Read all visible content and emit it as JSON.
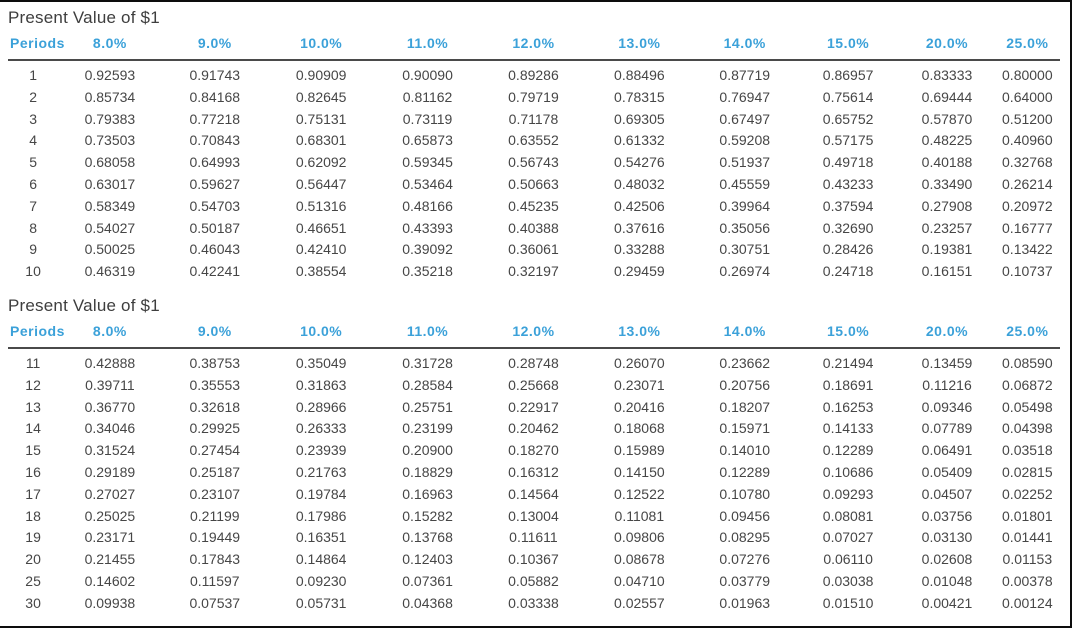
{
  "colors": {
    "header_text": "#3ba1d9",
    "body_text": "#464646",
    "title_text": "#3e3e3e",
    "rule": "#4a4a4a",
    "border": "#0d0d0d"
  },
  "chart_data": [
    {
      "type": "table",
      "title": "Present Value of $1",
      "columns": [
        "Periods",
        "8.0%",
        "9.0%",
        "10.0%",
        "11.0%",
        "12.0%",
        "13.0%",
        "14.0%",
        "15.0%",
        "20.0%",
        "25.0%"
      ],
      "rows": [
        [
          "1",
          "0.92593",
          "0.91743",
          "0.90909",
          "0.90090",
          "0.89286",
          "0.88496",
          "0.87719",
          "0.86957",
          "0.83333",
          "0.80000"
        ],
        [
          "2",
          "0.85734",
          "0.84168",
          "0.82645",
          "0.81162",
          "0.79719",
          "0.78315",
          "0.76947",
          "0.75614",
          "0.69444",
          "0.64000"
        ],
        [
          "3",
          "0.79383",
          "0.77218",
          "0.75131",
          "0.73119",
          "0.71178",
          "0.69305",
          "0.67497",
          "0.65752",
          "0.57870",
          "0.51200"
        ],
        [
          "4",
          "0.73503",
          "0.70843",
          "0.68301",
          "0.65873",
          "0.63552",
          "0.61332",
          "0.59208",
          "0.57175",
          "0.48225",
          "0.40960"
        ],
        [
          "5",
          "0.68058",
          "0.64993",
          "0.62092",
          "0.59345",
          "0.56743",
          "0.54276",
          "0.51937",
          "0.49718",
          "0.40188",
          "0.32768"
        ],
        [
          "6",
          "0.63017",
          "0.59627",
          "0.56447",
          "0.53464",
          "0.50663",
          "0.48032",
          "0.45559",
          "0.43233",
          "0.33490",
          "0.26214"
        ],
        [
          "7",
          "0.58349",
          "0.54703",
          "0.51316",
          "0.48166",
          "0.45235",
          "0.42506",
          "0.39964",
          "0.37594",
          "0.27908",
          "0.20972"
        ],
        [
          "8",
          "0.54027",
          "0.50187",
          "0.46651",
          "0.43393",
          "0.40388",
          "0.37616",
          "0.35056",
          "0.32690",
          "0.23257",
          "0.16777"
        ],
        [
          "9",
          "0.50025",
          "0.46043",
          "0.42410",
          "0.39092",
          "0.36061",
          "0.33288",
          "0.30751",
          "0.28426",
          "0.19381",
          "0.13422"
        ],
        [
          "10",
          "0.46319",
          "0.42241",
          "0.38554",
          "0.35218",
          "0.32197",
          "0.29459",
          "0.26974",
          "0.24718",
          "0.16151",
          "0.10737"
        ]
      ]
    },
    {
      "type": "table",
      "title": "Present Value of $1",
      "columns": [
        "Periods",
        "8.0%",
        "9.0%",
        "10.0%",
        "11.0%",
        "12.0%",
        "13.0%",
        "14.0%",
        "15.0%",
        "20.0%",
        "25.0%"
      ],
      "rows": [
        [
          "11",
          "0.42888",
          "0.38753",
          "0.35049",
          "0.31728",
          "0.28748",
          "0.26070",
          "0.23662",
          "0.21494",
          "0.13459",
          "0.08590"
        ],
        [
          "12",
          "0.39711",
          "0.35553",
          "0.31863",
          "0.28584",
          "0.25668",
          "0.23071",
          "0.20756",
          "0.18691",
          "0.11216",
          "0.06872"
        ],
        [
          "13",
          "0.36770",
          "0.32618",
          "0.28966",
          "0.25751",
          "0.22917",
          "0.20416",
          "0.18207",
          "0.16253",
          "0.09346",
          "0.05498"
        ],
        [
          "14",
          "0.34046",
          "0.29925",
          "0.26333",
          "0.23199",
          "0.20462",
          "0.18068",
          "0.15971",
          "0.14133",
          "0.07789",
          "0.04398"
        ],
        [
          "15",
          "0.31524",
          "0.27454",
          "0.23939",
          "0.20900",
          "0.18270",
          "0.15989",
          "0.14010",
          "0.12289",
          "0.06491",
          "0.03518"
        ],
        [
          "16",
          "0.29189",
          "0.25187",
          "0.21763",
          "0.18829",
          "0.16312",
          "0.14150",
          "0.12289",
          "0.10686",
          "0.05409",
          "0.02815"
        ],
        [
          "17",
          "0.27027",
          "0.23107",
          "0.19784",
          "0.16963",
          "0.14564",
          "0.12522",
          "0.10780",
          "0.09293",
          "0.04507",
          "0.02252"
        ],
        [
          "18",
          "0.25025",
          "0.21199",
          "0.17986",
          "0.15282",
          "0.13004",
          "0.11081",
          "0.09456",
          "0.08081",
          "0.03756",
          "0.01801"
        ],
        [
          "19",
          "0.23171",
          "0.19449",
          "0.16351",
          "0.13768",
          "0.11611",
          "0.09806",
          "0.08295",
          "0.07027",
          "0.03130",
          "0.01441"
        ],
        [
          "20",
          "0.21455",
          "0.17843",
          "0.14864",
          "0.12403",
          "0.10367",
          "0.08678",
          "0.07276",
          "0.06110",
          "0.02608",
          "0.01153"
        ],
        [
          "25",
          "0.14602",
          "0.11597",
          "0.09230",
          "0.07361",
          "0.05882",
          "0.04710",
          "0.03779",
          "0.03038",
          "0.01048",
          "0.00378"
        ],
        [
          "30",
          "0.09938",
          "0.07537",
          "0.05731",
          "0.04368",
          "0.03338",
          "0.02557",
          "0.01963",
          "0.01510",
          "0.00421",
          "0.00124"
        ]
      ]
    }
  ]
}
